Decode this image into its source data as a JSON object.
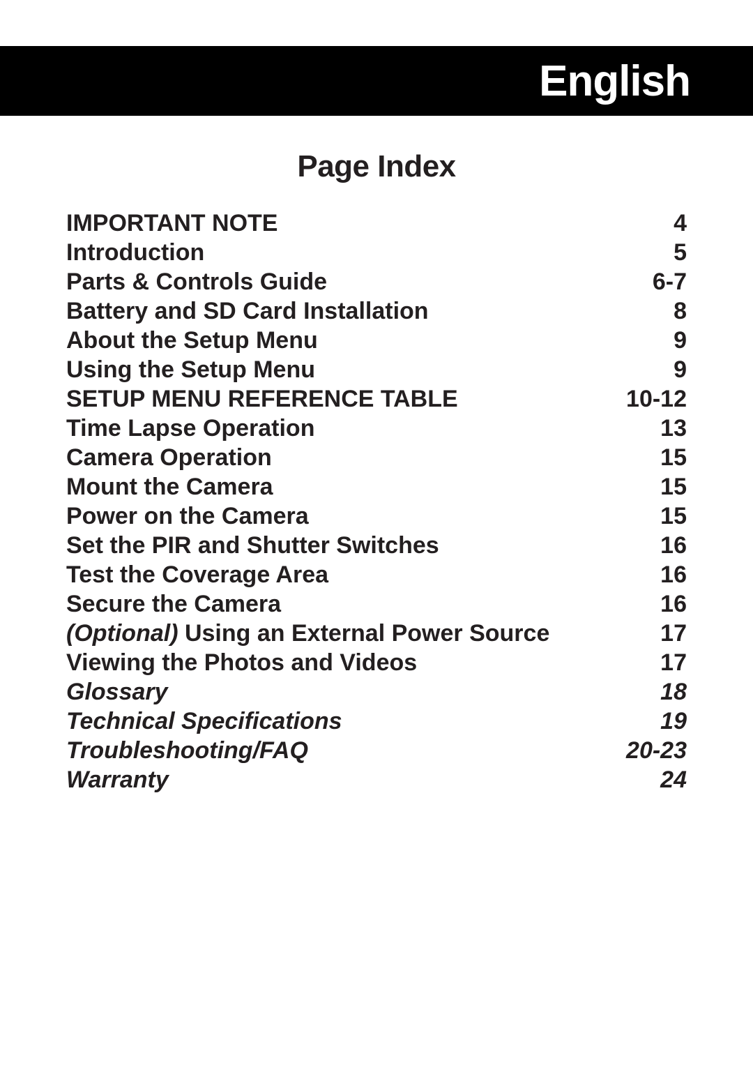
{
  "header": {
    "language": "English"
  },
  "title": "Page Index",
  "toc": [
    {
      "label": "IMPORTANT NOTE",
      "page": "4",
      "italic": false,
      "prefix_italic": ""
    },
    {
      "label": "Introduction",
      "page": "5",
      "italic": false,
      "prefix_italic": ""
    },
    {
      "label": "Parts & Controls Guide",
      "page": "6-7",
      "italic": false,
      "prefix_italic": ""
    },
    {
      "label": "Battery and SD Card Installation",
      "page": "8",
      "italic": false,
      "prefix_italic": ""
    },
    {
      "label": "About the Setup Menu",
      "page": "9",
      "italic": false,
      "prefix_italic": ""
    },
    {
      "label": "Using the Setup Menu",
      "page": "9",
      "italic": false,
      "prefix_italic": ""
    },
    {
      "label": "SETUP MENU REFERENCE TABLE",
      "page": "10-12",
      "italic": false,
      "prefix_italic": ""
    },
    {
      "label": "Time Lapse Operation",
      "page": "13",
      "italic": false,
      "prefix_italic": ""
    },
    {
      "label": "Camera Operation",
      "page": "15",
      "italic": false,
      "prefix_italic": ""
    },
    {
      "label": "Mount the Camera",
      "page": "15",
      "italic": false,
      "prefix_italic": ""
    },
    {
      "label": "Power on the Camera",
      "page": "15",
      "italic": false,
      "prefix_italic": ""
    },
    {
      "label": "Set the PIR and Shutter Switches",
      "page": "16",
      "italic": false,
      "prefix_italic": ""
    },
    {
      "label": "Test the Coverage Area",
      "page": "16",
      "italic": false,
      "prefix_italic": ""
    },
    {
      "label": "Secure the Camera",
      "page": "16",
      "italic": false,
      "prefix_italic": ""
    },
    {
      "label": "Using an External Power Source",
      "page": "17",
      "italic": false,
      "prefix_italic": "(Optional) "
    },
    {
      "label": "Viewing the Photos and Videos",
      "page": "17",
      "italic": false,
      "prefix_italic": ""
    },
    {
      "label": "Glossary",
      "page": "18",
      "italic": true,
      "prefix_italic": ""
    },
    {
      "label": "Technical Specifications",
      "page": "19",
      "italic": true,
      "prefix_italic": ""
    },
    {
      "label": "Troubleshooting/FAQ",
      "page": "20-23",
      "italic": true,
      "prefix_italic": ""
    },
    {
      "label": "Warranty",
      "page": "24",
      "italic": true,
      "prefix_italic": ""
    }
  ]
}
